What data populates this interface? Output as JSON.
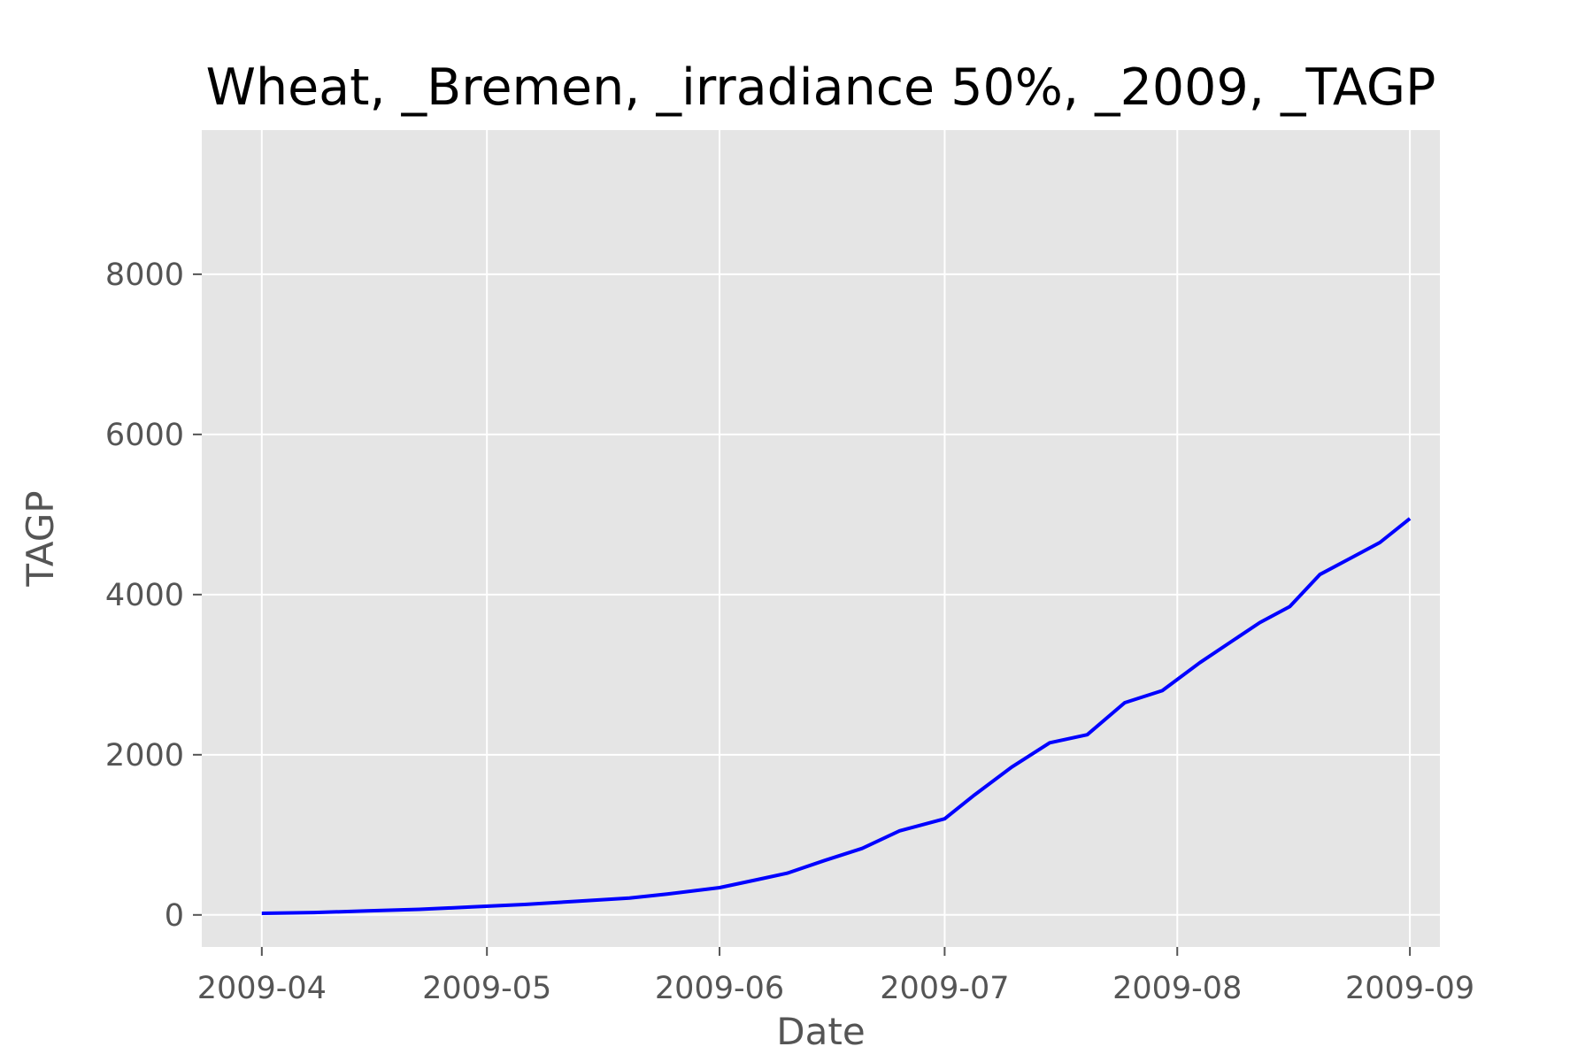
{
  "chart_data": {
    "type": "line",
    "title": "Wheat, _Bremen, _irradiance 50%, _2009, _TAGP",
    "xlabel": "Date",
    "ylabel": "TAGP",
    "xlim": [
      "2009-03-24",
      "2009-09-05"
    ],
    "ylim": [
      -400,
      9800
    ],
    "x_ticks": [
      {
        "date": "2009-04-01",
        "label": "2009-04"
      },
      {
        "date": "2009-05-01",
        "label": "2009-05"
      },
      {
        "date": "2009-06-01",
        "label": "2009-06"
      },
      {
        "date": "2009-07-01",
        "label": "2009-07"
      },
      {
        "date": "2009-08-01",
        "label": "2009-08"
      },
      {
        "date": "2009-09-01",
        "label": "2009-09"
      }
    ],
    "y_ticks": [
      {
        "value": 0,
        "label": "0"
      },
      {
        "value": 2000,
        "label": "2000"
      },
      {
        "value": 4000,
        "label": "4000"
      },
      {
        "value": 6000,
        "label": "6000"
      },
      {
        "value": 8000,
        "label": "8000"
      }
    ],
    "grid": true,
    "background_color": "#e5e5e5",
    "grid_color": "#ffffff",
    "series": [
      {
        "color": "#0000ff",
        "points": [
          [
            "2009-04-01",
            20
          ],
          [
            "2009-04-08",
            30
          ],
          [
            "2009-04-15",
            50
          ],
          [
            "2009-04-22",
            70
          ],
          [
            "2009-04-29",
            100
          ],
          [
            "2009-05-06",
            130
          ],
          [
            "2009-05-13",
            170
          ],
          [
            "2009-05-20",
            210
          ],
          [
            "2009-05-25",
            260
          ],
          [
            "2009-06-01",
            340
          ],
          [
            "2009-06-06",
            440
          ],
          [
            "2009-06-10",
            520
          ],
          [
            "2009-06-15",
            680
          ],
          [
            "2009-06-20",
            830
          ],
          [
            "2009-06-25",
            1050
          ],
          [
            "2009-07-01",
            1200
          ],
          [
            "2009-07-05",
            1500
          ],
          [
            "2009-07-10",
            1850
          ],
          [
            "2009-07-15",
            2150
          ],
          [
            "2009-07-20",
            2250
          ],
          [
            "2009-07-25",
            2650
          ],
          [
            "2009-07-30",
            2800
          ],
          [
            "2009-08-04",
            3150
          ],
          [
            "2009-08-08",
            3400
          ],
          [
            "2009-08-12",
            3650
          ],
          [
            "2009-08-16",
            3850
          ],
          [
            "2009-08-20",
            4250
          ],
          [
            "2009-08-24",
            4450
          ],
          [
            "2009-08-28",
            4650
          ],
          [
            "2009-09-01",
            4950
          ]
        ]
      }
    ]
  }
}
